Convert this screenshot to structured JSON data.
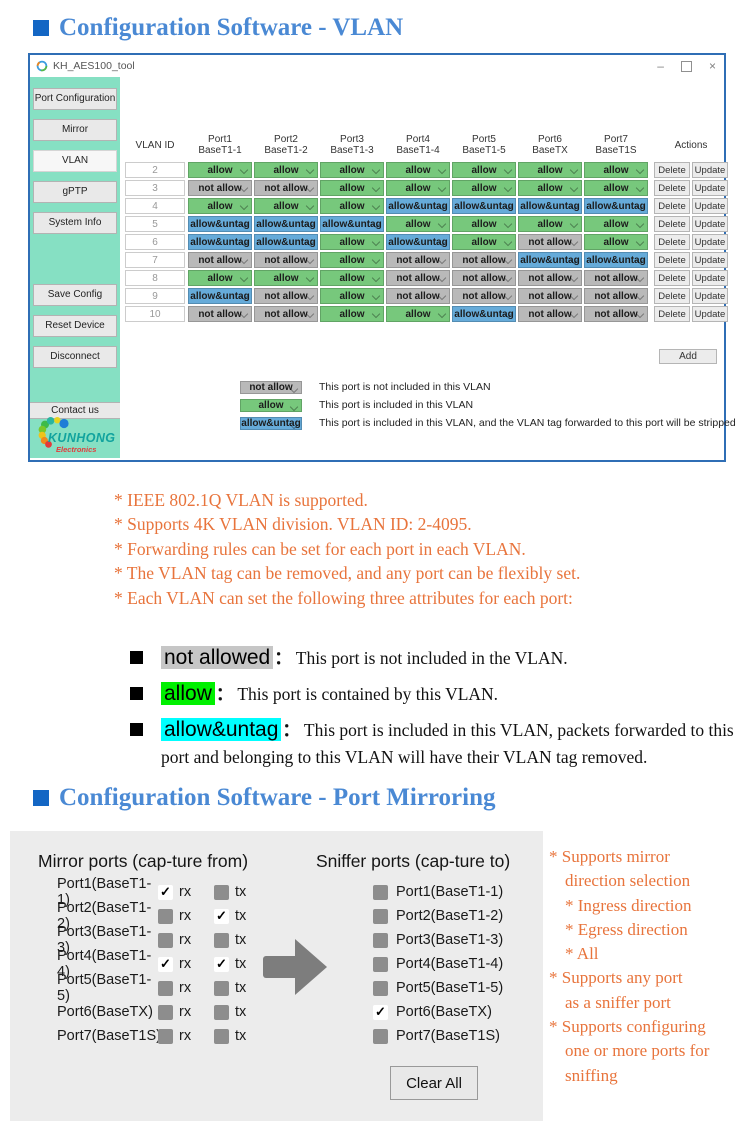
{
  "titles": {
    "vlan_section": "Configuration Software - VLAN",
    "mirroring_section": "Configuration Software - Port Mirroring"
  },
  "window": {
    "title": "KH_AES100_tool",
    "minimize": "–",
    "close": "×"
  },
  "sidebar": {
    "items": [
      {
        "label": "Port Configuration"
      },
      {
        "label": "Mirror"
      },
      {
        "label": "VLAN",
        "selected": true
      },
      {
        "label": "gPTP"
      },
      {
        "label": "System Info"
      },
      {
        "label": "Save Config",
        "gap": true
      },
      {
        "label": "Reset Device"
      },
      {
        "label": "Disconnect"
      },
      {
        "label": "Contact us",
        "wide": true
      }
    ],
    "logo": {
      "name": "KUNHONG",
      "subtitle": "Electronics"
    }
  },
  "vlan_table": {
    "id_header": "VLAN ID",
    "actions_header": "Actions",
    "columns": [
      {
        "name": "Port1",
        "sub": "BaseT1-1"
      },
      {
        "name": "Port2",
        "sub": "BaseT1-2"
      },
      {
        "name": "Port3",
        "sub": "BaseT1-3"
      },
      {
        "name": "Port4",
        "sub": "BaseT1-4"
      },
      {
        "name": "Port5",
        "sub": "BaseT1-5"
      },
      {
        "name": "Port6",
        "sub": "BaseTX"
      },
      {
        "name": "Port7",
        "sub": "BaseT1S"
      }
    ],
    "rows": [
      {
        "id": "2",
        "cells": [
          "allow",
          "allow",
          "allow",
          "allow",
          "allow",
          "allow",
          "allow"
        ]
      },
      {
        "id": "3",
        "cells": [
          "not allow",
          "not allow",
          "allow",
          "allow",
          "allow",
          "allow",
          "allow"
        ]
      },
      {
        "id": "4",
        "cells": [
          "allow",
          "allow",
          "allow",
          "allow&untag",
          "allow&untag",
          "allow&untag",
          "allow&untag"
        ]
      },
      {
        "id": "5",
        "cells": [
          "allow&untag",
          "allow&untag",
          "allow&untag",
          "allow",
          "allow",
          "allow",
          "allow"
        ]
      },
      {
        "id": "6",
        "cells": [
          "allow&untag",
          "allow&untag",
          "allow",
          "allow&untag",
          "allow",
          "not allow",
          "allow"
        ]
      },
      {
        "id": "7",
        "cells": [
          "not allow",
          "not allow",
          "allow",
          "not allow",
          "not allow",
          "allow&untag",
          "allow&untag"
        ]
      },
      {
        "id": "8",
        "cells": [
          "allow",
          "allow",
          "allow",
          "not allow",
          "not allow",
          "not allow",
          "not allow"
        ]
      },
      {
        "id": "9",
        "cells": [
          "allow&untag",
          "not allow",
          "allow",
          "not allow",
          "not allow",
          "not allow",
          "not allow"
        ]
      },
      {
        "id": "10",
        "cells": [
          "not allow",
          "not allow",
          "allow",
          "allow",
          "allow&untag",
          "not allow",
          "not allow"
        ]
      }
    ],
    "delete_label": "Delete",
    "update_label": "Update",
    "add_label": "Add",
    "value_colors": {
      "allow": "#77c87c",
      "not allow": "#b9b9b9",
      "allow&untag": "#66abd9"
    }
  },
  "legend": [
    {
      "value": "not allow",
      "text": "This port is not included in this VLAN"
    },
    {
      "value": "allow",
      "text": "This port is included in this VLAN"
    },
    {
      "value": "allow&untag",
      "text": "This port is included in this VLAN, and the VLAN tag forwarded to this port will be stripped"
    }
  ],
  "vlan_notes": [
    "* IEEE 802.1Q VLAN is supported.",
    "* Supports 4K VLAN division. VLAN ID: 2-4095.",
    "* Forwarding rules can be set for each port in each VLAN.",
    "* The VLAN tag can be removed, and any port can be flexibly set.",
    "* Each VLAN can set the following three attributes for each port:"
  ],
  "definitions_colon": "：",
  "definitions": [
    {
      "term": "not allowed",
      "highlight": "#c6c6c6",
      "text": "This port is not included in the VLAN."
    },
    {
      "term": "allow",
      "highlight": "#00f000",
      "text": "This port is contained by this VLAN."
    },
    {
      "term": "allow&untag",
      "highlight": "#00ffff",
      "text": "This port is included in this VLAN, packets forwarded to this port and belonging to this VLAN will have their VLAN tag removed."
    }
  ],
  "mirroring": {
    "mirror_header": "Mirror ports (cap-ture from)",
    "sniffer_header": "Sniffer ports (cap-ture to)",
    "rx_label": "rx",
    "tx_label": "tx",
    "check_glyph": "✓",
    "mirror_ports": [
      {
        "label": "Port1(BaseT1-1)",
        "rx": true,
        "tx": false
      },
      {
        "label": "Port2(BaseT1-2)",
        "rx": false,
        "tx": true
      },
      {
        "label": "Port3(BaseT1-3)",
        "rx": false,
        "tx": false
      },
      {
        "label": "Port4(BaseT1-4)",
        "rx": true,
        "tx": true
      },
      {
        "label": "Port5(BaseT1-5)",
        "rx": false,
        "tx": false
      },
      {
        "label": "Port6(BaseTX)",
        "rx": false,
        "tx": false
      },
      {
        "label": "Port7(BaseT1S)",
        "rx": false,
        "tx": false
      }
    ],
    "sniffer_ports": [
      {
        "label": "Port1(BaseT1-1)",
        "checked": false
      },
      {
        "label": "Port2(BaseT1-2)",
        "checked": false
      },
      {
        "label": "Port3(BaseT1-3)",
        "checked": false
      },
      {
        "label": "Port4(BaseT1-4)",
        "checked": false
      },
      {
        "label": "Port5(BaseT1-5)",
        "checked": false
      },
      {
        "label": "Port6(BaseTX)",
        "checked": true
      },
      {
        "label": "Port7(BaseT1S)",
        "checked": false
      }
    ],
    "clear_all_label": "Clear All"
  },
  "mirroring_notes": [
    {
      "text": "* Supports mirror",
      "indent": 0
    },
    {
      "text": "direction selection",
      "indent": 1
    },
    {
      "text": "* Ingress direction",
      "indent": 1
    },
    {
      "text": "* Egress direction",
      "indent": 1
    },
    {
      "text": "* All",
      "indent": 1
    },
    {
      "text": "* Supports any port",
      "indent": 0
    },
    {
      "text": "as a sniffer port",
      "indent": 1
    },
    {
      "text": "* Supports configuring",
      "indent": 0
    },
    {
      "text": "one or more ports for",
      "indent": 1
    },
    {
      "text": "sniffing",
      "indent": 1
    }
  ]
}
